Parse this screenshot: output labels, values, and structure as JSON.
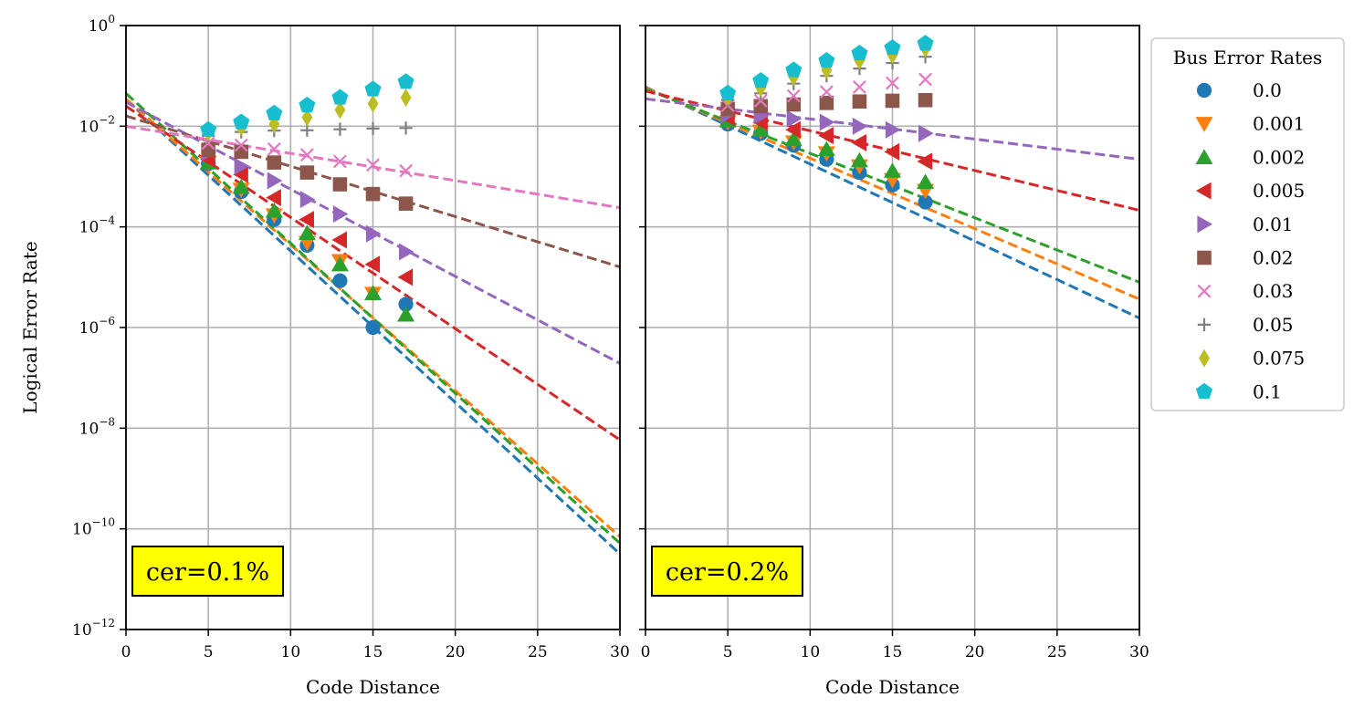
{
  "chart_data": [
    {
      "type": "scatter",
      "panel": "left",
      "annotation": "cer=0.1%",
      "xlabel": "Code Distance",
      "ylabel": "Logical Error Rate",
      "xlim": [
        0,
        30
      ],
      "ylim_log10": [
        -12,
        0
      ],
      "yscale": "log",
      "grid": true,
      "xticks": [
        0,
        5,
        10,
        15,
        20,
        25,
        30
      ],
      "yticks_exp": [
        0,
        -2,
        -4,
        -6,
        -8,
        -10,
        -12
      ],
      "series": [
        {
          "name": "0.0",
          "x": [
            5,
            7,
            9,
            11,
            13,
            15,
            17
          ],
          "y": [
            0.0018,
            0.0005,
            0.00014,
            4.3e-05,
            8.5e-06,
            1e-06,
            2.9e-06
          ],
          "fit": [
            0.034,
            -0.301
          ]
        },
        {
          "name": "0.001",
          "x": [
            5,
            7,
            9,
            11,
            13,
            15
          ],
          "y": [
            0.0019,
            0.00055,
            0.00017,
            4.8e-05,
            2.1e-05,
            4.7e-06
          ],
          "fit": [
            0.035,
            -0.29
          ]
        },
        {
          "name": "0.002",
          "x": [
            5,
            7,
            9,
            11,
            13,
            15,
            17
          ],
          "y": [
            0.0019,
            0.00062,
            0.00021,
            7.5e-05,
            1.8e-05,
            4.8e-06,
            1.8e-06
          ],
          "fit": [
            0.045,
            -0.298
          ]
        },
        {
          "name": "0.005",
          "x": [
            5,
            7,
            9,
            11,
            13,
            15,
            17
          ],
          "y": [
            0.0022,
            0.0011,
            0.00038,
            0.00014,
            5.5e-05,
            1.8e-05,
            1e-05
          ],
          "fit": [
            0.025,
            -0.221
          ]
        },
        {
          "name": "0.01",
          "x": [
            5,
            7,
            9,
            11,
            13,
            15,
            17
          ],
          "y": [
            0.003,
            0.0016,
            0.00083,
            0.00035,
            0.00018,
            7.3e-05,
            3.2e-05
          ],
          "fit": [
            0.03,
            -0.173
          ]
        },
        {
          "name": "0.02",
          "x": [
            5,
            7,
            9,
            11,
            13,
            15,
            17
          ],
          "y": [
            0.0034,
            0.0031,
            0.0019,
            0.0012,
            0.0007,
            0.00045,
            0.00029
          ],
          "fit": [
            0.016,
            -0.1
          ]
        },
        {
          "name": "0.03",
          "x": [
            5,
            7,
            9,
            11,
            13,
            15,
            17
          ],
          "y": [
            0.0046,
            0.0042,
            0.0035,
            0.0027,
            0.002,
            0.0017,
            0.0013
          ],
          "fit": [
            0.01,
            -0.054
          ]
        },
        {
          "name": "0.05",
          "x": [
            5,
            7,
            9,
            11,
            13,
            15,
            17
          ],
          "y": [
            0.0065,
            0.0077,
            0.0082,
            0.0083,
            0.0087,
            0.009,
            0.0092
          ]
        },
        {
          "name": "0.075",
          "x": [
            5,
            7,
            9,
            11,
            13,
            15,
            17
          ],
          "y": [
            0.0075,
            0.0095,
            0.011,
            0.015,
            0.021,
            0.028,
            0.037
          ]
        },
        {
          "name": "0.1",
          "x": [
            5,
            7,
            9,
            11,
            13,
            15,
            17
          ],
          "y": [
            0.0085,
            0.012,
            0.018,
            0.026,
            0.037,
            0.054,
            0.076
          ]
        }
      ]
    },
    {
      "type": "scatter",
      "panel": "right",
      "annotation": "cer=0.2%",
      "xlabel": "Code Distance",
      "xlim": [
        0,
        30
      ],
      "ylim_log10": [
        -12,
        0
      ],
      "yscale": "log",
      "grid": true,
      "xticks": [
        0,
        5,
        10,
        15,
        20,
        25,
        30
      ],
      "series": [
        {
          "name": "0.0",
          "x": [
            5,
            7,
            9,
            11,
            13,
            15,
            17
          ],
          "y": [
            0.011,
            0.0072,
            0.0042,
            0.0022,
            0.0012,
            0.00068,
            0.00031
          ],
          "fit": [
            0.06,
            -0.153
          ]
        },
        {
          "name": "0.001",
          "x": [
            5,
            7,
            9,
            11,
            13,
            15,
            17
          ],
          "y": [
            0.012,
            0.0078,
            0.0048,
            0.0029,
            0.0016,
            0.00085,
            0.00052
          ],
          "fit": [
            0.058,
            -0.14
          ]
        },
        {
          "name": "0.002",
          "x": [
            5,
            7,
            9,
            11,
            13,
            15,
            17
          ],
          "y": [
            0.013,
            0.0085,
            0.0055,
            0.0035,
            0.0021,
            0.0013,
            0.00078
          ],
          "fit": [
            0.055,
            -0.128
          ]
        },
        {
          "name": "0.005",
          "x": [
            5,
            7,
            9,
            11,
            13,
            15,
            17
          ],
          "y": [
            0.015,
            0.012,
            0.0085,
            0.0065,
            0.0047,
            0.0031,
            0.002
          ],
          "fit": [
            0.05,
            -0.079
          ]
        },
        {
          "name": "0.01",
          "x": [
            5,
            7,
            9,
            11,
            13,
            15,
            17
          ],
          "y": [
            0.017,
            0.016,
            0.014,
            0.012,
            0.01,
            0.0085,
            0.0072
          ],
          "fit": [
            0.035,
            -0.04
          ]
        },
        {
          "name": "0.02",
          "x": [
            5,
            7,
            9,
            11,
            13,
            15,
            17
          ],
          "y": [
            0.022,
            0.025,
            0.027,
            0.029,
            0.031,
            0.032,
            0.033
          ]
        },
        {
          "name": "0.03",
          "x": [
            5,
            7,
            9,
            11,
            13,
            15,
            17
          ],
          "y": [
            0.026,
            0.032,
            0.04,
            0.048,
            0.06,
            0.072,
            0.085
          ]
        },
        {
          "name": "0.05",
          "x": [
            5,
            7,
            9,
            11,
            13,
            15,
            17
          ],
          "y": [
            0.033,
            0.045,
            0.07,
            0.1,
            0.14,
            0.18,
            0.24
          ]
        },
        {
          "name": "0.075",
          "x": [
            5,
            7,
            9,
            11,
            13,
            15,
            17
          ],
          "y": [
            0.038,
            0.058,
            0.095,
            0.13,
            0.2,
            0.26,
            0.35
          ]
        },
        {
          "name": "0.1",
          "x": [
            5,
            7,
            9,
            11,
            13,
            15,
            17
          ],
          "y": [
            0.045,
            0.08,
            0.13,
            0.2,
            0.28,
            0.36,
            0.44
          ]
        }
      ]
    }
  ],
  "legend": {
    "title": "Bus Error Rates",
    "position": "outside-right",
    "entries": [
      {
        "label": "0.0",
        "color": "#1f77b4",
        "marker": "circle"
      },
      {
        "label": "0.001",
        "color": "#ff7f0e",
        "marker": "triangle-down"
      },
      {
        "label": "0.002",
        "color": "#2ca02c",
        "marker": "triangle-up"
      },
      {
        "label": "0.005",
        "color": "#d62728",
        "marker": "triangle-left"
      },
      {
        "label": "0.01",
        "color": "#9467bd",
        "marker": "triangle-right"
      },
      {
        "label": "0.02",
        "color": "#8c564b",
        "marker": "square"
      },
      {
        "label": "0.03",
        "color": "#e377c2",
        "marker": "x"
      },
      {
        "label": "0.05",
        "color": "#7f7f7f",
        "marker": "plus"
      },
      {
        "label": "0.075",
        "color": "#bcbd22",
        "marker": "thin-diamond"
      },
      {
        "label": "0.1",
        "color": "#17becf",
        "marker": "pentagon"
      }
    ]
  }
}
